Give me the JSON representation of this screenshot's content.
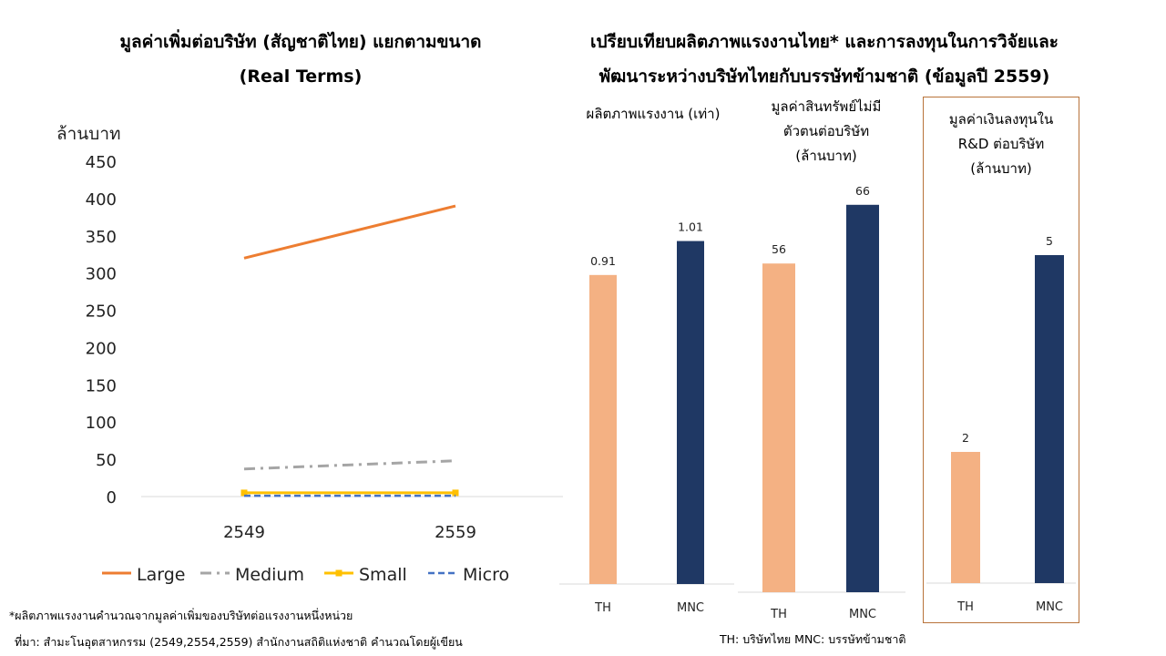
{
  "left_title_line1": "มูลค่าเพิ่มต่อบริษัท (สัญชาติไทย) แยกตามขนาด",
  "left_title_line2": "(Real Terms)",
  "right_title_line1": "เปรียบเทียบผลิตภาพแรงงานไทย* และการลงทุนในการวิจัยและ",
  "right_title_line2": "พัฒนาระหว่างบริษัทไทยกับบรรษัทข้ามชาติ (ข้อมูลปี 2559)",
  "footnote_line1": "*ผลิตภาพแรงงานคำนวณจากมูลค่าเพิ่มของบริษัทต่อแรงงานหนึ่งหน่วย",
  "footnote_line2": "ที่มา: สำมะโนอุตสาหกรรม  (2549,2554,2559) สำนักงานสถิติแห่งชาติ  คำนวณโดยผู้เขียน",
  "legend_note": "TH: บริษัทไทย  MNC: บรรษัทข้ามชาติ",
  "colors": {
    "large": "#ed7d31",
    "medium": "#a5a5a5",
    "small": "#ffc000",
    "micro": "#4472c4",
    "th": "#f4b183",
    "mnc": "#1f3864",
    "frame": "#b8733a"
  },
  "chart_data": [
    {
      "type": "line",
      "title": "มูลค่าเพิ่มต่อบริษัท (สัญชาติไทย) แยกตามขนาด (Real Terms)",
      "ylabel": "ล้านบาท",
      "ylim": [
        0,
        450
      ],
      "yticks": [
        "0",
        "50",
        "100",
        "150",
        "200",
        "250",
        "300",
        "350",
        "400",
        "450"
      ],
      "categories": [
        "2549",
        "2559"
      ],
      "grid": false,
      "legend_position": "bottom",
      "series": [
        {
          "name": "Large",
          "values": [
            320,
            390
          ],
          "style": "solid"
        },
        {
          "name": "Medium",
          "values": [
            37,
            48
          ],
          "style": "dashdot"
        },
        {
          "name": "Small",
          "values": [
            5,
            5
          ],
          "style": "solid-square-markers"
        },
        {
          "name": "Micro",
          "values": [
            1,
            1
          ],
          "style": "dashed"
        }
      ]
    },
    {
      "type": "bar",
      "title": "ผลิตภาพแรงงาน (เท่า)",
      "categories": [
        "TH",
        "MNC"
      ],
      "values": [
        0.91,
        1.01
      ],
      "labels": [
        "0.91",
        "1.01"
      ],
      "ylim": [
        0,
        1.21
      ]
    },
    {
      "type": "bar",
      "title": "มูลค่าสินทรัพย์ไม่มีตัวตนต่อบริษัท (ล้านบาท)",
      "categories": [
        "TH",
        "MNC"
      ],
      "values": [
        56,
        66
      ],
      "labels": [
        "56",
        "66"
      ],
      "ylim": [
        0,
        71.4
      ]
    },
    {
      "type": "bar",
      "title": "มูลค่าเงินลงทุนใน R&D ต่อบริษัท (ล้านบาท)",
      "categories": [
        "TH",
        "MNC"
      ],
      "values": [
        2,
        5
      ],
      "labels": [
        "2",
        "5"
      ],
      "ylim": [
        0,
        6.25
      ]
    }
  ],
  "bar_titles": [
    [
      "ผลิตภาพแรงงาน (เท่า)"
    ],
    [
      "มูลค่าสินทรัพย์ไม่มี",
      "ตัวตนต่อบริษัท",
      "(ล้านบาท)"
    ],
    [
      "มูลค่าเงินลงทุนใน",
      "R&D ต่อบริษัท",
      "(ล้านบาท)"
    ]
  ]
}
